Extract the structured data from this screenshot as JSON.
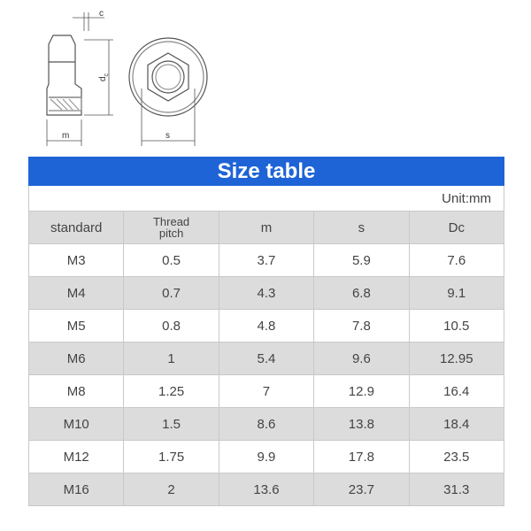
{
  "drawing": {
    "labels": {
      "c": "c",
      "d": "d",
      "d_sub": "c",
      "m": "m",
      "s": "s"
    }
  },
  "table": {
    "title": "Size table",
    "unit": "Unit:mm",
    "header": [
      "standard",
      "Thread pitch",
      "m",
      "s",
      "Dc"
    ],
    "rows": [
      [
        "M3",
        "0.5",
        "3.7",
        "5.9",
        "7.6"
      ],
      [
        "M4",
        "0.7",
        "4.3",
        "6.8",
        "9.1"
      ],
      [
        "M5",
        "0.8",
        "4.8",
        "7.8",
        "10.5"
      ],
      [
        "M6",
        "1",
        "5.4",
        "9.6",
        "12.95"
      ],
      [
        "M8",
        "1.25",
        "7",
        "12.9",
        "16.4"
      ],
      [
        "M10",
        "1.5",
        "8.6",
        "13.8",
        "18.4"
      ],
      [
        "M12",
        "1.75",
        "9.9",
        "17.8",
        "23.5"
      ],
      [
        "M16",
        "2",
        "13.6",
        "23.7",
        "31.3"
      ]
    ]
  }
}
